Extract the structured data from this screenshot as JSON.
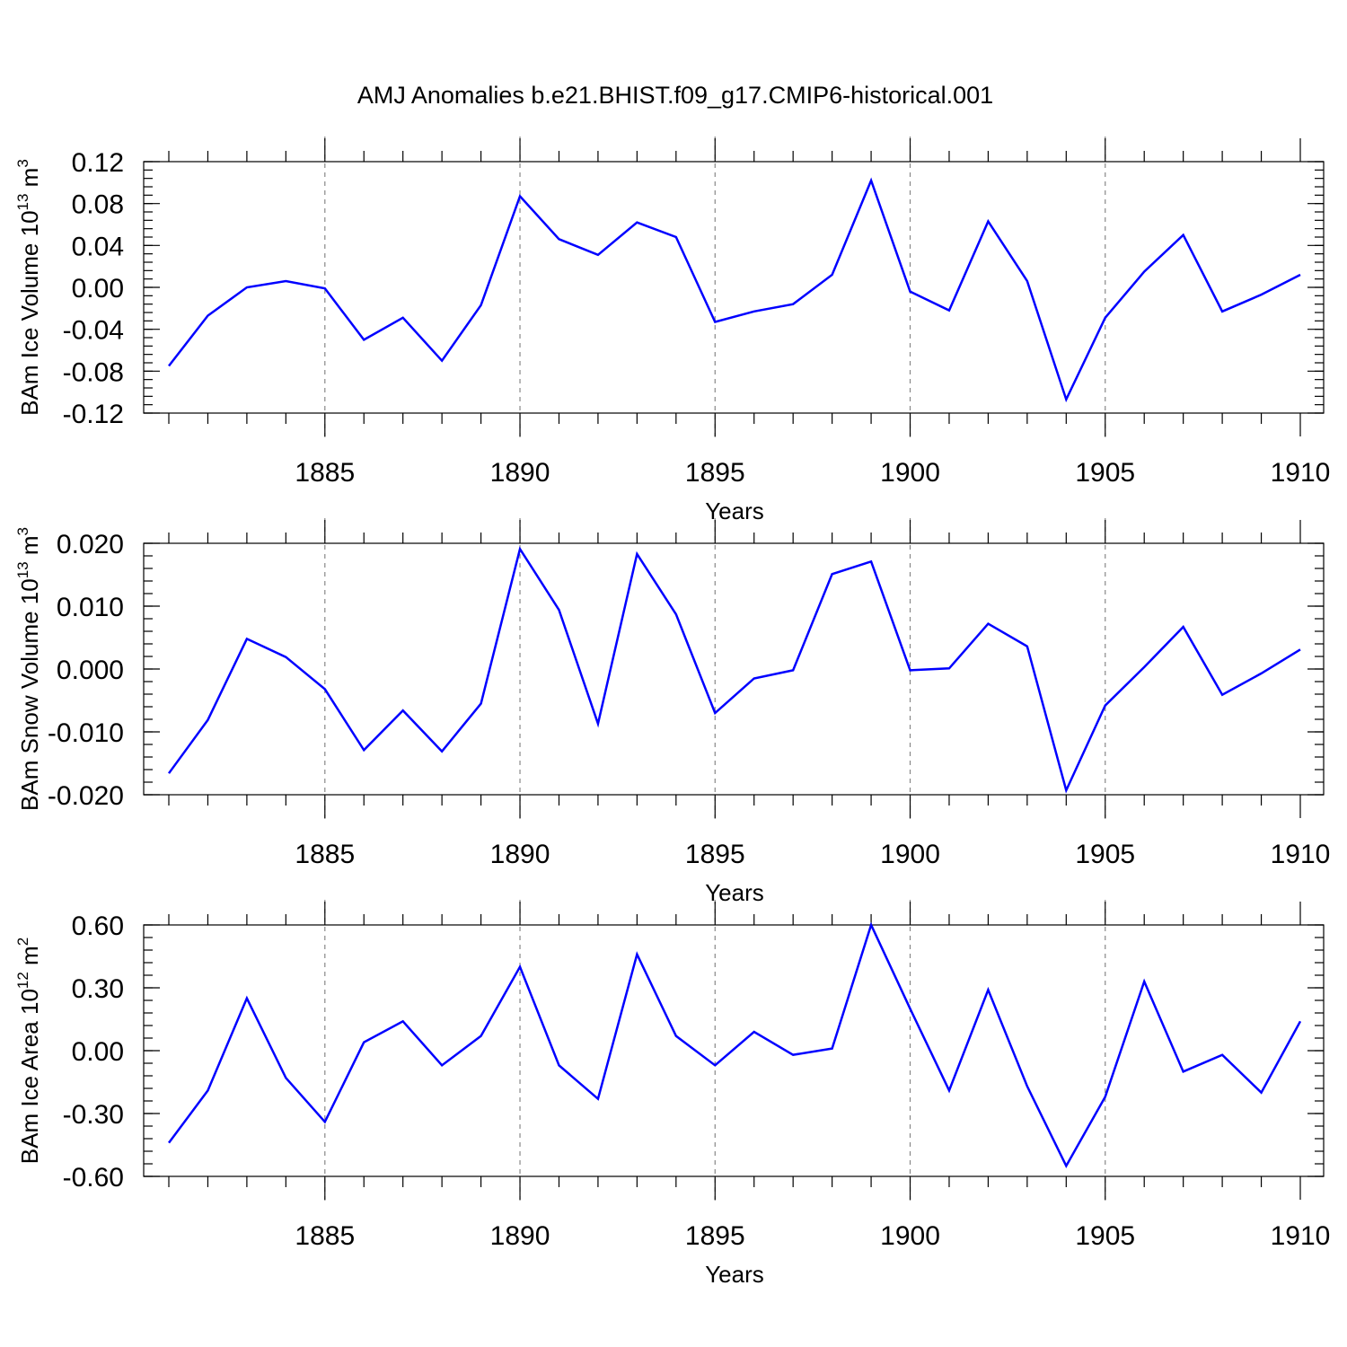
{
  "figure": {
    "title": "AMJ Anomalies b.e21.BHIST.f09_g17.CMIP6-historical.001"
  },
  "chart_data": [
    {
      "type": "line",
      "name": "ice-volume",
      "title": "",
      "xlabel": "Years",
      "ylabel": {
        "text": "BAm Ice Volume 10",
        "sup": "13",
        "unit": " m",
        "unit_sup": "3"
      },
      "xlim": [
        1881,
        1910
      ],
      "ylim": [
        -0.12,
        0.12
      ],
      "ymajor_ticks": [
        -0.12,
        -0.08,
        -0.04,
        0.0,
        0.04,
        0.08,
        0.12
      ],
      "ytick_labels": [
        "-0.12",
        "-0.08",
        "-0.04",
        "0.00",
        "0.04",
        "0.08",
        "0.12"
      ],
      "yminor_step": 0.008,
      "xmajor_ticks": [
        1885,
        1890,
        1895,
        1900,
        1905,
        1910
      ],
      "xtick_labels": [
        "1885",
        "1890",
        "1895",
        "1900",
        "1905",
        "1910"
      ],
      "grid_x": [
        1885,
        1890,
        1895,
        1900,
        1905
      ],
      "series": [
        {
          "name": "BAm Ice Volume",
          "color": "#0000ff",
          "x": [
            1881,
            1882,
            1883,
            1884,
            1885,
            1886,
            1887,
            1888,
            1889,
            1890,
            1891,
            1892,
            1893,
            1894,
            1895,
            1896,
            1897,
            1898,
            1899,
            1900,
            1901,
            1902,
            1903,
            1904,
            1905,
            1906,
            1907,
            1908,
            1909,
            1910
          ],
          "values": [
            -0.075,
            -0.027,
            0.0,
            0.006,
            -0.001,
            -0.05,
            -0.029,
            -0.07,
            -0.017,
            0.087,
            0.046,
            0.031,
            0.062,
            0.048,
            -0.033,
            -0.023,
            -0.016,
            0.012,
            0.102,
            -0.004,
            -0.022,
            0.063,
            0.006,
            -0.107,
            -0.029,
            0.015,
            0.05,
            -0.023,
            -0.007,
            0.012
          ]
        }
      ]
    },
    {
      "type": "line",
      "name": "snow-volume",
      "title": "",
      "xlabel": "Years",
      "ylabel": {
        "text": "BAm Snow Volume 10",
        "sup": "13",
        "unit": " m",
        "unit_sup": "3"
      },
      "xlim": [
        1881,
        1910
      ],
      "ylim": [
        -0.02,
        0.02
      ],
      "ymajor_ticks": [
        -0.02,
        -0.01,
        0.0,
        0.01,
        0.02
      ],
      "ytick_labels": [
        "-0.020",
        "-0.010",
        "0.000",
        "0.010",
        "0.020"
      ],
      "yminor_step": 0.002,
      "xmajor_ticks": [
        1885,
        1890,
        1895,
        1900,
        1905,
        1910
      ],
      "xtick_labels": [
        "1885",
        "1890",
        "1895",
        "1900",
        "1905",
        "1910"
      ],
      "grid_x": [
        1885,
        1890,
        1895,
        1900,
        1905
      ],
      "series": [
        {
          "name": "BAm Snow Volume",
          "color": "#0000ff",
          "x": [
            1881,
            1882,
            1883,
            1884,
            1885,
            1886,
            1887,
            1888,
            1889,
            1890,
            1891,
            1892,
            1893,
            1894,
            1895,
            1896,
            1897,
            1898,
            1899,
            1900,
            1901,
            1902,
            1903,
            1904,
            1905,
            1906,
            1907,
            1908,
            1909,
            1910
          ],
          "values": [
            -0.0166,
            -0.0081,
            0.0048,
            0.0019,
            -0.0032,
            -0.0129,
            -0.0066,
            -0.0131,
            -0.0055,
            0.0191,
            0.0094,
            -0.0087,
            0.0183,
            0.0087,
            -0.007,
            -0.0015,
            -0.0002,
            0.0151,
            0.0171,
            -0.0002,
            0.0001,
            0.0072,
            0.0036,
            -0.0193,
            -0.0058,
            0.0003,
            0.0067,
            -0.0041,
            -0.0007,
            0.0031
          ]
        }
      ]
    },
    {
      "type": "line",
      "name": "ice-area",
      "title": "",
      "xlabel": "Years",
      "ylabel": {
        "text": "BAm Ice Area 10",
        "sup": "12",
        "unit": " m",
        "unit_sup": "2"
      },
      "xlim": [
        1881,
        1910
      ],
      "ylim": [
        -0.6,
        0.6
      ],
      "ymajor_ticks": [
        -0.6,
        -0.3,
        0.0,
        0.3,
        0.6
      ],
      "ytick_labels": [
        "-0.60",
        "-0.30",
        "0.00",
        "0.30",
        "0.60"
      ],
      "yminor_step": 0.06,
      "xmajor_ticks": [
        1885,
        1890,
        1895,
        1900,
        1905,
        1910
      ],
      "xtick_labels": [
        "1885",
        "1890",
        "1895",
        "1900",
        "1905",
        "1910"
      ],
      "grid_x": [
        1885,
        1890,
        1895,
        1900,
        1905
      ],
      "series": [
        {
          "name": "BAm Ice Area",
          "color": "#0000ff",
          "x": [
            1881,
            1882,
            1883,
            1884,
            1885,
            1886,
            1887,
            1888,
            1889,
            1890,
            1891,
            1892,
            1893,
            1894,
            1895,
            1896,
            1897,
            1898,
            1899,
            1900,
            1901,
            1902,
            1903,
            1904,
            1905,
            1906,
            1907,
            1908,
            1909,
            1910
          ],
          "values": [
            -0.44,
            -0.19,
            0.25,
            -0.13,
            -0.34,
            0.04,
            0.14,
            -0.07,
            0.07,
            0.4,
            -0.07,
            -0.23,
            0.46,
            0.07,
            -0.07,
            0.09,
            -0.02,
            0.01,
            0.6,
            0.2,
            -0.19,
            0.29,
            -0.17,
            -0.55,
            -0.22,
            0.33,
            -0.1,
            -0.02,
            -0.2,
            0.14
          ]
        }
      ]
    }
  ]
}
